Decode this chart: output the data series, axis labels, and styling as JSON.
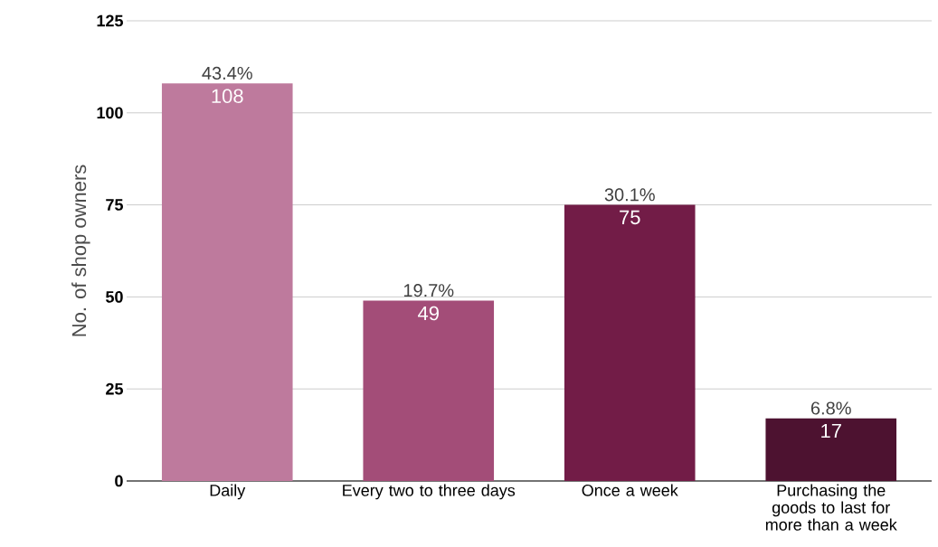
{
  "chart_data": {
    "type": "bar",
    "ylabel": "No. of shop owners",
    "categories": [
      "Daily",
      "Every two to three days",
      "Once a week",
      "Purchasing the goods to last for more than a week"
    ],
    "values": [
      108,
      49,
      75,
      17
    ],
    "colors": [
      "#be7a9d",
      "#a34d78",
      "#721c47",
      "#4d1230"
    ],
    "data_labels": true,
    "annotations": [
      {
        "text": "43.4%",
        "x": "Daily",
        "y": 108
      },
      {
        "text": "19.7%",
        "x": "Every two to three days",
        "y": 49
      },
      {
        "text": "30.1%",
        "x": "Once a week",
        "y": 75
      },
      {
        "text": "6.8%",
        "x": "Purchasing the goods to last for more than a week",
        "y": 17
      }
    ],
    "ylim": [
      0,
      125
    ],
    "yticks": [
      0,
      25,
      50,
      75,
      100,
      125
    ],
    "grid": "y"
  }
}
